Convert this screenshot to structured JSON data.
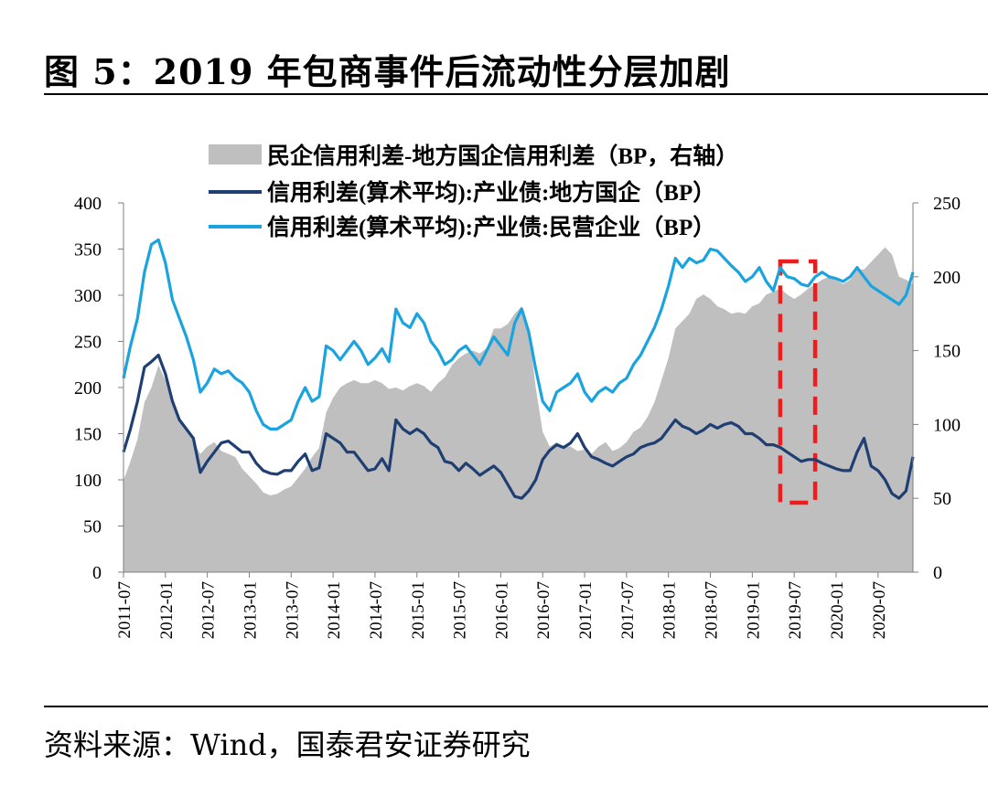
{
  "figure": {
    "title": "图 5：2019 年包商事件后流动性分层加剧",
    "source": "资料来源：Wind，国泰君安证券研究"
  },
  "chart_data": {
    "type": "line+area",
    "legend": [
      {
        "label": "民企信用利差-地方国企信用利差（BP，右轴）",
        "kind": "area",
        "color": "#bfbfbf"
      },
      {
        "label": "信用利差(算术平均):产业债:地方国企（BP）",
        "kind": "line",
        "color": "#1f3f73"
      },
      {
        "label": "信用利差(算术平均):产业债:民营企业（BP）",
        "kind": "line",
        "color": "#1aa3de"
      }
    ],
    "left_axis": {
      "min": 0,
      "max": 400,
      "ticks": [
        0,
        50,
        100,
        150,
        200,
        250,
        300,
        350,
        400
      ]
    },
    "right_axis": {
      "min": 0,
      "max": 250,
      "ticks": [
        0,
        50,
        100,
        150,
        200,
        250
      ]
    },
    "x_labels": [
      "2011-07",
      "2012-01",
      "2012-07",
      "2013-01",
      "2013-07",
      "2014-01",
      "2014-07",
      "2015-01",
      "2015-07",
      "2016-01",
      "2016-07",
      "2017-01",
      "2017-07",
      "2018-01",
      "2018-07",
      "2019-01",
      "2019-07",
      "2020-01",
      "2020-07"
    ],
    "x_range": [
      0,
      113
    ],
    "highlight_range": [
      94,
      99
    ],
    "series": [
      {
        "name": "信用利差(算术平均):产业债:地方国企（BP）",
        "axis": "left",
        "x": [
          0,
          1,
          2,
          3,
          4,
          5,
          6,
          7,
          8,
          9,
          10,
          11,
          12,
          13,
          14,
          15,
          16,
          17,
          18,
          19,
          20,
          21,
          22,
          23,
          24,
          25,
          26,
          27,
          28,
          29,
          30,
          31,
          32,
          33,
          34,
          35,
          36,
          37,
          38,
          39,
          40,
          41,
          42,
          43,
          44,
          45,
          46,
          47,
          48,
          49,
          50,
          51,
          52,
          53,
          54,
          55,
          56,
          57,
          58,
          59,
          60,
          61,
          62,
          63,
          64,
          65,
          66,
          67,
          68,
          69,
          70,
          71,
          72,
          73,
          74,
          75,
          76,
          77,
          78,
          79,
          80,
          81,
          82,
          83,
          84,
          85,
          86,
          87,
          88,
          89,
          90,
          91,
          92,
          93,
          94,
          95,
          96,
          97,
          98,
          99,
          100,
          101,
          102,
          103,
          104,
          105,
          106,
          107,
          108,
          109,
          110,
          111,
          112,
          113
        ],
        "values": [
          130,
          155,
          185,
          222,
          228,
          235,
          215,
          185,
          165,
          155,
          145,
          108,
          120,
          130,
          140,
          142,
          136,
          130,
          130,
          118,
          110,
          107,
          106,
          110,
          110,
          120,
          128,
          110,
          113,
          150,
          145,
          140,
          130,
          130,
          120,
          110,
          112,
          123,
          110,
          165,
          155,
          150,
          155,
          150,
          140,
          135,
          120,
          118,
          110,
          118,
          112,
          105,
          110,
          115,
          108,
          95,
          82,
          80,
          88,
          100,
          122,
          132,
          138,
          135,
          140,
          150,
          135,
          125,
          122,
          118,
          115,
          120,
          125,
          128,
          135,
          138,
          140,
          145,
          155,
          165,
          158,
          155,
          150,
          154,
          160,
          156,
          160,
          162,
          158,
          150,
          150,
          145,
          138,
          138,
          135,
          130,
          125,
          120,
          122,
          122,
          118,
          115,
          112,
          110,
          110,
          130,
          145,
          115,
          110,
          100,
          85,
          80,
          88,
          125
        ]
      },
      {
        "name": "信用利差(算术平均):产业债:民营企业（BP）",
        "axis": "left",
        "x": [
          0,
          1,
          2,
          3,
          4,
          5,
          6,
          7,
          8,
          9,
          10,
          11,
          12,
          13,
          14,
          15,
          16,
          17,
          18,
          19,
          20,
          21,
          22,
          23,
          24,
          25,
          26,
          27,
          28,
          29,
          30,
          31,
          32,
          33,
          34,
          35,
          36,
          37,
          38,
          39,
          40,
          41,
          42,
          43,
          44,
          45,
          46,
          47,
          48,
          49,
          50,
          51,
          52,
          53,
          54,
          55,
          56,
          57,
          58,
          59,
          60,
          61,
          62,
          63,
          64,
          65,
          66,
          67,
          68,
          69,
          70,
          71,
          72,
          73,
          74,
          75,
          76,
          77,
          78,
          79,
          80,
          81,
          82,
          83,
          84,
          85,
          86,
          87,
          88,
          89,
          90,
          91,
          92,
          93,
          94,
          95,
          96,
          97,
          98,
          99,
          100,
          101,
          102,
          103,
          104,
          105,
          106,
          107,
          108,
          109,
          110,
          111,
          112,
          113
        ],
        "values": [
          210,
          245,
          275,
          325,
          355,
          360,
          335,
          295,
          275,
          255,
          230,
          195,
          205,
          220,
          215,
          218,
          210,
          205,
          195,
          175,
          160,
          155,
          155,
          160,
          165,
          185,
          200,
          185,
          190,
          245,
          240,
          230,
          240,
          250,
          240,
          225,
          232,
          242,
          228,
          285,
          270,
          265,
          280,
          270,
          250,
          240,
          225,
          230,
          240,
          245,
          235,
          225,
          240,
          255,
          245,
          235,
          270,
          285,
          260,
          220,
          185,
          175,
          195,
          200,
          205,
          215,
          195,
          185,
          195,
          200,
          195,
          205,
          210,
          225,
          235,
          250,
          265,
          285,
          310,
          340,
          330,
          340,
          335,
          338,
          350,
          348,
          340,
          332,
          325,
          315,
          320,
          330,
          315,
          305,
          330,
          320,
          318,
          312,
          310,
          320,
          325,
          320,
          318,
          315,
          320,
          330,
          320,
          310,
          305,
          300,
          295,
          290,
          300,
          325
        ]
      },
      {
        "name": "民企信用利差-地方国企信用利差（BP，右轴）",
        "axis": "right",
        "x": [
          0,
          1,
          2,
          3,
          4,
          5,
          6,
          7,
          8,
          9,
          10,
          11,
          12,
          13,
          14,
          15,
          16,
          17,
          18,
          19,
          20,
          21,
          22,
          23,
          24,
          25,
          26,
          27,
          28,
          29,
          30,
          31,
          32,
          33,
          34,
          35,
          36,
          37,
          38,
          39,
          40,
          41,
          42,
          43,
          44,
          45,
          46,
          47,
          48,
          49,
          50,
          51,
          52,
          53,
          54,
          55,
          56,
          57,
          58,
          59,
          60,
          61,
          62,
          63,
          64,
          65,
          66,
          67,
          68,
          69,
          70,
          71,
          72,
          73,
          74,
          75,
          76,
          77,
          78,
          79,
          80,
          81,
          82,
          83,
          84,
          85,
          86,
          87,
          88,
          89,
          90,
          91,
          92,
          93,
          94,
          95,
          96,
          97,
          98,
          99,
          100,
          101,
          102,
          103,
          104,
          105,
          106,
          107,
          108,
          109,
          110,
          111,
          112,
          113
        ],
        "values": [
          62,
          75,
          90,
          115,
          125,
          140,
          130,
          115,
          105,
          98,
          88,
          80,
          85,
          88,
          82,
          80,
          78,
          70,
          65,
          60,
          54,
          52,
          53,
          56,
          58,
          64,
          70,
          78,
          84,
          108,
          118,
          125,
          128,
          130,
          128,
          128,
          130,
          128,
          124,
          125,
          123,
          126,
          128,
          126,
          122,
          128,
          132,
          140,
          145,
          148,
          150,
          148,
          152,
          165,
          165,
          168,
          175,
          180,
          165,
          125,
          95,
          85,
          88,
          85,
          85,
          82,
          83,
          80,
          85,
          88,
          82,
          84,
          88,
          95,
          98,
          105,
          115,
          130,
          145,
          165,
          170,
          175,
          185,
          188,
          185,
          180,
          178,
          175,
          176,
          175,
          180,
          182,
          188,
          190,
          192,
          188,
          185,
          188,
          192,
          195,
          198,
          200,
          198,
          195,
          198,
          205,
          205,
          210,
          215,
          220,
          215,
          200,
          198,
          195
        ]
      }
    ]
  }
}
